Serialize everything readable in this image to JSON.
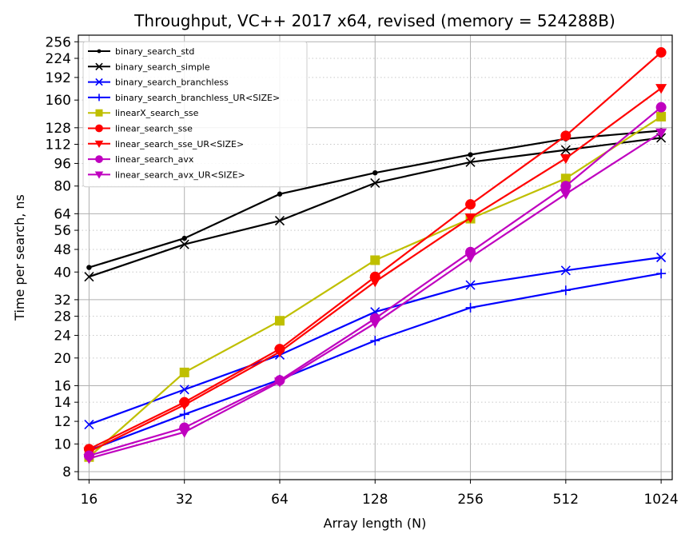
{
  "chart_data": {
    "type": "line",
    "title": "Throughput, VC++ 2017 x64, revised (memory = 524288B)",
    "xlabel": "Array length (N)",
    "ylabel": "Time per search, ns",
    "x_scale": "log2",
    "y_scale": "log",
    "x": [
      16,
      32,
      64,
      128,
      256,
      512,
      1024
    ],
    "x_tick_labels": [
      "16",
      "32",
      "64",
      "128",
      "256",
      "512",
      "1024"
    ],
    "y_ticks": [
      8,
      10,
      12,
      14,
      16,
      20,
      24,
      28,
      32,
      40,
      48,
      56,
      64,
      80,
      96,
      112,
      128,
      160,
      192,
      224,
      256
    ],
    "y_tick_labels": [
      "8",
      "10",
      "12",
      "14",
      "16",
      "20",
      "24",
      "28",
      "32",
      "40",
      "48",
      "56",
      "64",
      "80",
      "96",
      "112",
      "128",
      "160",
      "192",
      "224",
      "256"
    ],
    "xlim": [
      14.8,
      1110
    ],
    "ylim": [
      7.5,
      270
    ],
    "grid": true,
    "legend_position": "top-left",
    "series": [
      {
        "name": "binary_search_std",
        "color": "#000000",
        "marker": "dot",
        "values": [
          41.5,
          52.5,
          75,
          89,
          103,
          117,
          125
        ]
      },
      {
        "name": "binary_search_simple",
        "color": "#000000",
        "marker": "x",
        "values": [
          38.5,
          50,
          60.5,
          82,
          97,
          107,
          118
        ]
      },
      {
        "name": "binary_search_branchless",
        "color": "#0000ff",
        "marker": "x",
        "values": [
          11.7,
          15.5,
          20.5,
          29,
          36,
          40.5,
          45
        ]
      },
      {
        "name": "binary_search_branchless_UR<SIZE>",
        "color": "#0000ff",
        "marker": "plus",
        "values": [
          9.5,
          12.7,
          16.8,
          23,
          30,
          34.5,
          39.5
        ]
      },
      {
        "name": "linearX_search_sse",
        "color": "#bfbf00",
        "marker": "square",
        "values": [
          9,
          17.8,
          27,
          44,
          61.5,
          85,
          140
        ]
      },
      {
        "name": "linear_search_sse",
        "color": "#ff0000",
        "marker": "circle",
        "values": [
          9.6,
          14,
          21.5,
          38.5,
          69,
          120,
          235
        ]
      },
      {
        "name": "linear_search_sse_UR<SIZE>",
        "color": "#ff0000",
        "marker": "triangle-down",
        "values": [
          9.4,
          13.7,
          21,
          37,
          62,
          100,
          176
        ]
      },
      {
        "name": "linear_search_avx",
        "color": "#bf00bf",
        "marker": "circle",
        "values": [
          9.1,
          11.4,
          16.7,
          27.5,
          47,
          80,
          151
        ]
      },
      {
        "name": "linear_search_avx_UR<SIZE>",
        "color": "#bf00bf",
        "marker": "triangle-down",
        "values": [
          8.9,
          11,
          16.5,
          26.5,
          45,
          75,
          123
        ]
      }
    ]
  }
}
